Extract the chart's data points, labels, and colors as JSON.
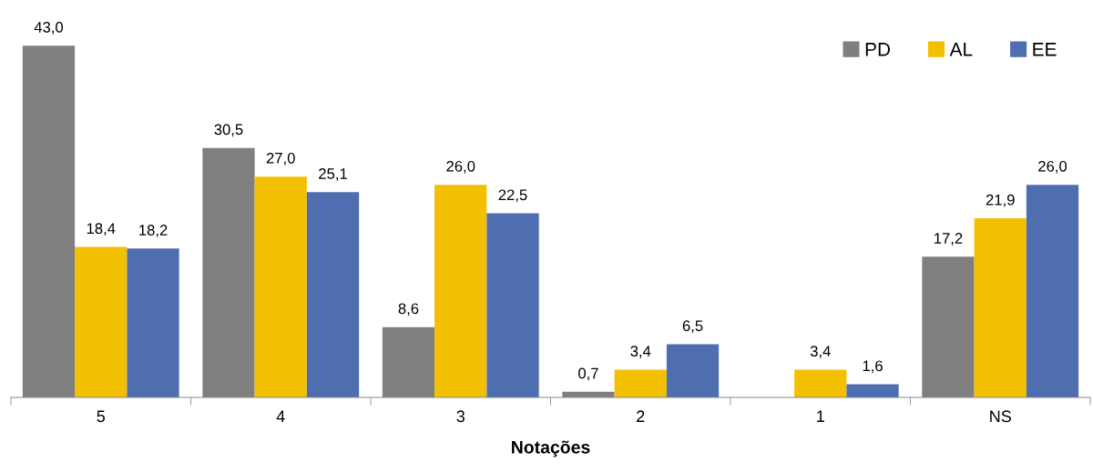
{
  "chart_data": {
    "type": "bar",
    "xlabel": "Notações",
    "categories": [
      "5",
      "4",
      "3",
      "2",
      "1",
      "NS"
    ],
    "series": [
      {
        "name": "PD",
        "color": "#7f7f7f",
        "values": [
          43.0,
          30.5,
          8.6,
          0.7,
          null,
          17.2
        ],
        "value_labels": [
          "43,0",
          "30,5",
          "8,6",
          "0,7",
          null,
          "17,2"
        ]
      },
      {
        "name": "AL",
        "color": "#f2c000",
        "values": [
          18.4,
          27.0,
          26.0,
          3.4,
          3.4,
          21.9
        ],
        "value_labels": [
          "18,4",
          "27,0",
          "26,0",
          "3,4",
          "3,4",
          "21,9"
        ]
      },
      {
        "name": "EE",
        "color": "#4f6eb0",
        "values": [
          18.2,
          25.1,
          22.5,
          6.5,
          1.6,
          26.0
        ],
        "value_labels": [
          "18,2",
          "25,1",
          "22,5",
          "6,5",
          "1,6",
          "26,0"
        ]
      }
    ],
    "legend": "top right",
    "grid": false
  }
}
